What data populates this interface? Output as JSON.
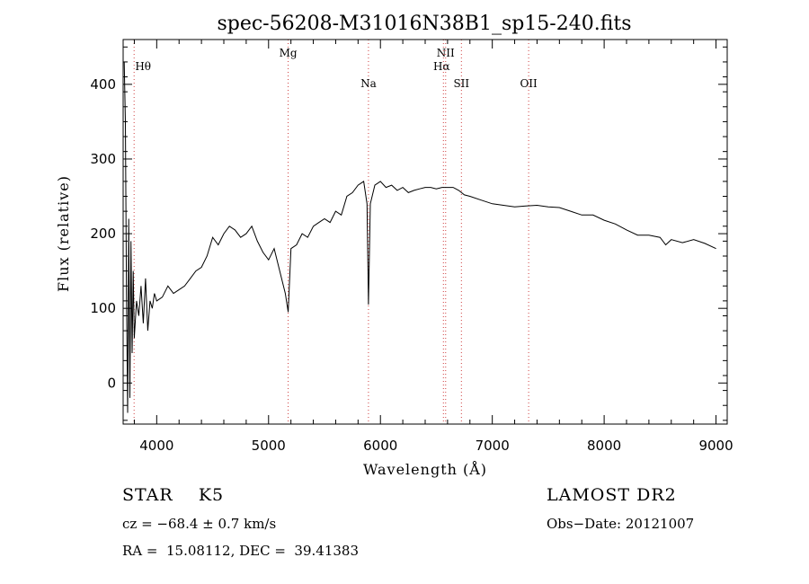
{
  "chart_data": {
    "type": "line",
    "title": "spec-56208-M31016N38B1_sp15-240.fits",
    "xlabel": "Wavelength (Å)",
    "ylabel": "Flux (relative)",
    "xlim": [
      3700,
      9100
    ],
    "ylim": [
      -55,
      460
    ],
    "xticks": [
      4000,
      5000,
      6000,
      7000,
      8000,
      9000
    ],
    "yticks": [
      0,
      100,
      200,
      300,
      400
    ],
    "grid": false,
    "line_color": "#000000",
    "marker_color": "#d04040",
    "lines": [
      {
        "label": "Hθ",
        "wavelength": 3798
      },
      {
        "label": "Mg",
        "wavelength": 5175
      },
      {
        "label": "Na",
        "wavelength": 5893
      },
      {
        "label": "NII",
        "wavelength": 6583
      },
      {
        "label": "Hα",
        "wavelength": 6563
      },
      {
        "label": "SII",
        "wavelength": 6724
      },
      {
        "label": "OII",
        "wavelength": 7325
      }
    ],
    "series": [
      {
        "x": [
          3710,
          3720,
          3730,
          3740,
          3750,
          3760,
          3770,
          3780,
          3790,
          3800,
          3820,
          3840,
          3860,
          3880,
          3900,
          3920,
          3940,
          3960,
          3980,
          4000,
          4050,
          4100,
          4150,
          4200,
          4250,
          4300,
          4350,
          4400,
          4450,
          4500,
          4550,
          4600,
          4650,
          4700,
          4750,
          4800,
          4850,
          4900,
          4950,
          5000,
          5050,
          5100,
          5150,
          5175,
          5200,
          5250,
          5300,
          5350,
          5400,
          5450,
          5500,
          5550,
          5600,
          5650,
          5700,
          5750,
          5800,
          5850,
          5880,
          5893,
          5910,
          5950,
          6000,
          6050,
          6100,
          6150,
          6200,
          6250,
          6300,
          6350,
          6400,
          6450,
          6500,
          6550,
          6600,
          6650,
          6700,
          6750,
          6800,
          6900,
          7000,
          7100,
          7200,
          7300,
          7400,
          7500,
          7600,
          7700,
          7800,
          7900,
          8000,
          8100,
          8200,
          8300,
          8400,
          8500,
          8550,
          8600,
          8700,
          8800,
          8900,
          9000
        ],
        "y": [
          430,
          350,
          120,
          -40,
          220,
          -20,
          190,
          40,
          150,
          60,
          110,
          90,
          130,
          80,
          140,
          70,
          110,
          100,
          120,
          110,
          115,
          130,
          120,
          125,
          130,
          140,
          150,
          155,
          170,
          195,
          185,
          200,
          210,
          205,
          195,
          200,
          210,
          190,
          175,
          165,
          180,
          150,
          120,
          95,
          180,
          185,
          200,
          195,
          210,
          215,
          220,
          215,
          230,
          225,
          250,
          255,
          265,
          270,
          240,
          105,
          240,
          265,
          270,
          262,
          265,
          258,
          262,
          255,
          258,
          260,
          262,
          262,
          260,
          262,
          262,
          262,
          258,
          252,
          250,
          245,
          240,
          238,
          236,
          237,
          238,
          236,
          235,
          230,
          225,
          225,
          218,
          213,
          205,
          198,
          198,
          195,
          185,
          192,
          188,
          192,
          187,
          180
        ]
      }
    ],
    "footer": {
      "class_text": "STAR    K5",
      "survey": "LAMOST DR2",
      "cz_text": "cz = −68.4 ± 0.7 km/s",
      "obs_date_text": "Obs−Date: 20121007",
      "radec_text": "RA =  15.08112, DEC =  39.41383"
    }
  }
}
